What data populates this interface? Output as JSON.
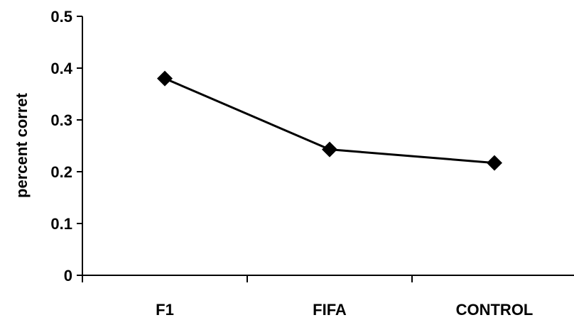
{
  "chart_data": {
    "type": "line",
    "title": "",
    "xlabel": "",
    "ylabel": "percent corret",
    "categories": [
      "F1",
      "FIFA",
      "CONTROL"
    ],
    "series": [
      {
        "values": [
          0.38,
          0.243,
          0.217
        ]
      }
    ],
    "ylim": [
      0,
      0.5
    ],
    "yticks": [
      "0",
      "0.1",
      "0.2",
      "0.3",
      "0.4",
      "0.5"
    ],
    "grid": false,
    "legend": "none",
    "marker": "diamond",
    "colors": {
      "line": "#000000",
      "marker": "#000000",
      "axis": "#000000"
    }
  }
}
